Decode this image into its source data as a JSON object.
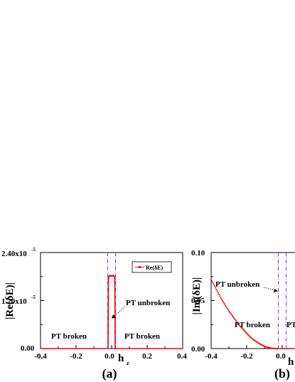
{
  "chart_data": [
    {
      "panel_label": "(a)",
      "type": "line",
      "xlabel": "h",
      "xlabel_sub": "z",
      "ylabel": "|Re(δE)|",
      "xlim": [
        -0.4,
        0.4
      ],
      "ylim": [
        0,
        2.4e-05
      ],
      "x_ticks": [
        "-0.4",
        "-0.2",
        "0.0",
        "0.2",
        "0.4"
      ],
      "y_ticks": [
        "0.00",
        "1.20x10",
        "2.40x10"
      ],
      "y_tick_exponent": "-5",
      "series": [
        {
          "name": "Re(δE)",
          "color": "#ff0000",
          "x": [
            -0.4,
            -0.02,
            -0.018,
            -0.016,
            -0.014,
            -0.012,
            -0.01,
            -0.008,
            -0.006,
            -0.004,
            -0.002,
            0.0,
            0.002,
            0.004,
            0.006,
            0.008,
            0.01,
            0.012,
            0.014,
            0.016,
            0.018,
            0.02,
            0.4
          ],
          "values": [
            0,
            0,
            1.75e-05,
            1.8e-05,
            1.81e-05,
            1.81e-05,
            1.82e-05,
            1.82e-05,
            1.82e-05,
            1.82e-05,
            1.82e-05,
            1.82e-05,
            1.82e-05,
            1.82e-05,
            1.82e-05,
            1.82e-05,
            1.82e-05,
            1.81e-05,
            1.81e-05,
            1.8e-05,
            1.75e-05,
            0,
            0
          ]
        }
      ],
      "vlines": [
        -0.022,
        0.022
      ],
      "vline_color": "#8a2be2",
      "annotations": [
        "PT broken",
        "PT unbroken",
        "PT broken"
      ],
      "legend": "top-right"
    },
    {
      "panel_label": "(b)",
      "type": "scatter",
      "xlabel": "h",
      "ylabel": "|Im(δE)|",
      "xlim": [
        -0.4,
        0.07
      ],
      "ylim": [
        0,
        0.1
      ],
      "x_ticks": [
        "-0.4",
        "-0.2",
        "0.0"
      ],
      "y_ticks": [
        "0.00",
        "0.05",
        "0.10"
      ],
      "series": [
        {
          "color": "#ff0000",
          "x": [
            -0.4,
            -0.38,
            -0.36,
            -0.34,
            -0.32,
            -0.3,
            -0.28,
            -0.26,
            -0.24,
            -0.22,
            -0.2,
            -0.18,
            -0.16,
            -0.14,
            -0.12,
            -0.1,
            -0.08,
            -0.06,
            -0.04,
            -0.022
          ],
          "values": [
            0.072,
            0.065,
            0.058,
            0.051,
            0.045,
            0.039,
            0.034,
            0.029,
            0.024,
            0.02,
            0.016,
            0.012,
            0.009,
            0.0065,
            0.0042,
            0.0024,
            0.0011,
            0.0003,
            5e-05,
            0
          ]
        }
      ],
      "vlines": [
        -0.022,
        0.022
      ],
      "vline_color": "#8a2be2",
      "annotations": [
        "PT unbroken",
        "PT broken",
        "PT"
      ]
    }
  ]
}
